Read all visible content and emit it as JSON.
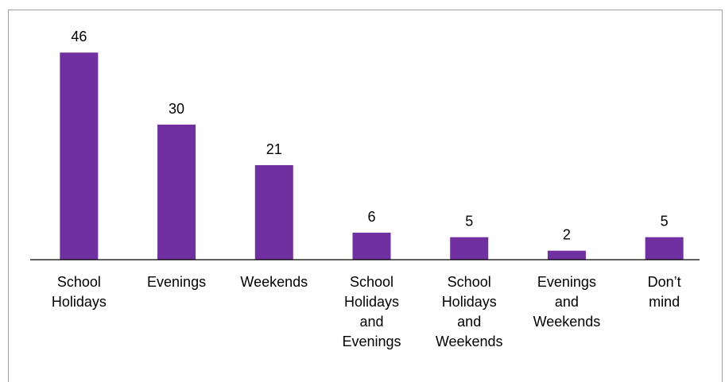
{
  "chart_data": {
    "type": "bar",
    "categories": [
      "School Holidays",
      "Evenings",
      "Weekends",
      "School Holidays and Evenings",
      "School Holidays and Weekends",
      "Evenings and Weekends",
      "Don’t mind"
    ],
    "values": [
      46,
      30,
      21,
      6,
      5,
      2,
      5
    ],
    "color": "#7030a0",
    "ylim": [
      0,
      50
    ]
  }
}
